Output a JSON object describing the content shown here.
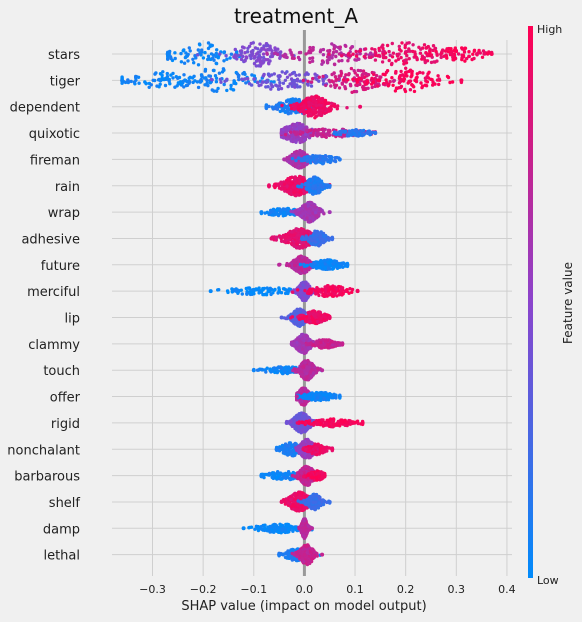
{
  "chart_data": {
    "type": "beeswarm",
    "title": "treatment_A",
    "xlabel": "SHAP value (impact on model output)",
    "xlim": [
      -0.38,
      0.41
    ],
    "x_ticks": [
      -0.3,
      -0.2,
      -0.1,
      0.0,
      0.1,
      0.2,
      0.3,
      0.4
    ],
    "x_tick_labels": [
      "−0.3",
      "−0.2",
      "−0.1",
      "0.0",
      "0.1",
      "0.2",
      "0.3",
      "0.4"
    ],
    "grid": true,
    "colorbar": {
      "label": "Feature value",
      "high_label": "High",
      "low_label": "Low",
      "low_color": "#008bfb",
      "mid_color": "#8b44cc",
      "high_color": "#ff0052"
    },
    "features": [
      {
        "name": "stars",
        "min": -0.27,
        "max": 0.37,
        "blobs": [
          {
            "x": -0.2,
            "s": 0.05,
            "w": 0.5,
            "h": 1.0,
            "c": 0.05
          },
          {
            "x": -0.09,
            "s": 0.03,
            "w": 0.7,
            "h": 1.0,
            "c": 0.45
          },
          {
            "x": 0.05,
            "s": 0.05,
            "w": 0.7,
            "h": 0.9,
            "c": 0.7
          },
          {
            "x": 0.2,
            "s": 0.06,
            "w": 0.9,
            "h": 1.0,
            "c": 0.9
          },
          {
            "x": 0.31,
            "s": 0.03,
            "w": 0.4,
            "h": 0.6,
            "c": 0.97
          }
        ]
      },
      {
        "name": "tiger",
        "min": -0.36,
        "max": 0.31,
        "blobs": [
          {
            "x": -0.28,
            "s": 0.05,
            "w": 0.4,
            "h": 0.7,
            "c": 0.05
          },
          {
            "x": -0.17,
            "s": 0.05,
            "w": 0.6,
            "h": 1.0,
            "c": 0.05
          },
          {
            "x": -0.04,
            "s": 0.06,
            "w": 0.7,
            "h": 0.8,
            "c": 0.4
          },
          {
            "x": 0.1,
            "s": 0.04,
            "w": 0.7,
            "h": 1.0,
            "c": 0.8
          },
          {
            "x": 0.2,
            "s": 0.05,
            "w": 0.8,
            "h": 1.0,
            "c": 0.97
          }
        ]
      },
      {
        "name": "dependent",
        "min": -0.075,
        "max": 0.11,
        "blobs": [
          {
            "x": -0.02,
            "s": 0.025,
            "w": 0.5,
            "h": 0.6,
            "c": 0.1
          },
          {
            "x": 0.02,
            "s": 0.02,
            "w": 0.8,
            "h": 0.9,
            "c": 0.92
          }
        ]
      },
      {
        "name": "quixotic",
        "min": -0.045,
        "max": 0.14,
        "blobs": [
          {
            "x": -0.015,
            "s": 0.02,
            "w": 0.9,
            "h": 0.8,
            "c": 0.55
          },
          {
            "x": 0.05,
            "s": 0.04,
            "w": 0.3,
            "h": 0.3,
            "c": 0.75
          },
          {
            "x": 0.1,
            "s": 0.02,
            "w": 0.2,
            "h": 0.2,
            "c": 0.15
          }
        ]
      },
      {
        "name": "fireman",
        "min": -0.04,
        "max": 0.07,
        "blobs": [
          {
            "x": -0.01,
            "s": 0.012,
            "w": 1.0,
            "h": 0.7,
            "c": 0.65
          },
          {
            "x": 0.03,
            "s": 0.02,
            "w": 0.3,
            "h": 0.3,
            "c": 0.12
          }
        ]
      },
      {
        "name": "rain",
        "min": -0.07,
        "max": 0.05,
        "blobs": [
          {
            "x": -0.015,
            "s": 0.02,
            "w": 0.8,
            "h": 0.8,
            "c": 0.92
          },
          {
            "x": 0.02,
            "s": 0.012,
            "w": 0.6,
            "h": 0.7,
            "c": 0.12
          }
        ]
      },
      {
        "name": "wrap",
        "min": -0.085,
        "max": 0.05,
        "blobs": [
          {
            "x": -0.04,
            "s": 0.025,
            "w": 0.25,
            "h": 0.25,
            "c": 0.05
          },
          {
            "x": 0.01,
            "s": 0.012,
            "w": 1.0,
            "h": 0.8,
            "c": 0.6
          }
        ]
      },
      {
        "name": "adhesive",
        "min": -0.065,
        "max": 0.055,
        "blobs": [
          {
            "x": -0.01,
            "s": 0.02,
            "w": 1.0,
            "h": 0.8,
            "c": 0.88
          },
          {
            "x": 0.025,
            "s": 0.012,
            "w": 0.5,
            "h": 0.6,
            "c": 0.2
          }
        ]
      },
      {
        "name": "future",
        "min": -0.05,
        "max": 0.085,
        "blobs": [
          {
            "x": -0.005,
            "s": 0.012,
            "w": 1.0,
            "h": 0.7,
            "c": 0.7
          },
          {
            "x": 0.045,
            "s": 0.02,
            "w": 0.5,
            "h": 0.35,
            "c": 0.05
          }
        ]
      },
      {
        "name": "merciful",
        "min": -0.185,
        "max": 0.105,
        "blobs": [
          {
            "x": -0.08,
            "s": 0.05,
            "w": 0.35,
            "h": 0.22,
            "c": 0.02
          },
          {
            "x": 0.0,
            "s": 0.008,
            "w": 1.0,
            "h": 0.8,
            "c": 0.45
          },
          {
            "x": 0.05,
            "s": 0.025,
            "w": 0.45,
            "h": 0.4,
            "c": 0.95
          }
        ]
      },
      {
        "name": "lip",
        "min": -0.045,
        "max": 0.05,
        "blobs": [
          {
            "x": -0.01,
            "s": 0.01,
            "w": 1.0,
            "h": 0.7,
            "c": 0.3
          },
          {
            "x": 0.02,
            "s": 0.015,
            "w": 0.6,
            "h": 0.5,
            "c": 0.92
          }
        ]
      },
      {
        "name": "clammy",
        "min": -0.025,
        "max": 0.075,
        "blobs": [
          {
            "x": -0.002,
            "s": 0.01,
            "w": 1.0,
            "h": 0.8,
            "c": 0.6
          },
          {
            "x": 0.04,
            "s": 0.015,
            "w": 0.35,
            "h": 0.3,
            "c": 0.75
          }
        ]
      },
      {
        "name": "touch",
        "min": -0.1,
        "max": 0.035,
        "blobs": [
          {
            "x": -0.04,
            "s": 0.025,
            "w": 0.3,
            "h": 0.22,
            "c": 0.05
          },
          {
            "x": 0.005,
            "s": 0.01,
            "w": 1.0,
            "h": 0.8,
            "c": 0.7
          }
        ]
      },
      {
        "name": "offer",
        "min": -0.015,
        "max": 0.07,
        "blobs": [
          {
            "x": -0.002,
            "s": 0.008,
            "w": 1.0,
            "h": 0.7,
            "c": 0.7
          },
          {
            "x": 0.03,
            "s": 0.02,
            "w": 0.45,
            "h": 0.3,
            "c": 0.05
          }
        ]
      },
      {
        "name": "rigid",
        "min": -0.035,
        "max": 0.115,
        "blobs": [
          {
            "x": -0.005,
            "s": 0.012,
            "w": 1.0,
            "h": 0.8,
            "c": 0.4
          },
          {
            "x": 0.055,
            "s": 0.03,
            "w": 0.4,
            "h": 0.25,
            "c": 0.97
          }
        ]
      },
      {
        "name": "nonchalant",
        "min": -0.055,
        "max": 0.055,
        "blobs": [
          {
            "x": -0.025,
            "s": 0.015,
            "w": 0.6,
            "h": 0.5,
            "c": 0.1
          },
          {
            "x": 0.005,
            "s": 0.01,
            "w": 1.0,
            "h": 0.8,
            "c": 0.55
          },
          {
            "x": 0.025,
            "s": 0.012,
            "w": 0.4,
            "h": 0.4,
            "c": 0.92
          }
        ]
      },
      {
        "name": "barbarous",
        "min": -0.085,
        "max": 0.04,
        "blobs": [
          {
            "x": -0.04,
            "s": 0.025,
            "w": 0.3,
            "h": 0.28,
            "c": 0.05
          },
          {
            "x": 0.005,
            "s": 0.01,
            "w": 1.0,
            "h": 0.8,
            "c": 0.75
          },
          {
            "x": 0.025,
            "s": 0.01,
            "w": 0.4,
            "h": 0.35,
            "c": 0.95
          }
        ]
      },
      {
        "name": "shelf",
        "min": -0.045,
        "max": 0.05,
        "blobs": [
          {
            "x": -0.01,
            "s": 0.015,
            "w": 1.0,
            "h": 0.8,
            "c": 0.9
          },
          {
            "x": 0.02,
            "s": 0.01,
            "w": 0.7,
            "h": 0.6,
            "c": 0.2
          }
        ]
      },
      {
        "name": "damp",
        "min": -0.12,
        "max": 0.015,
        "blobs": [
          {
            "x": -0.05,
            "s": 0.03,
            "w": 0.35,
            "h": 0.3,
            "c": 0.02
          },
          {
            "x": 0.0,
            "s": 0.004,
            "w": 1.0,
            "h": 0.8,
            "c": 0.7
          }
        ]
      },
      {
        "name": "lethal",
        "min": -0.05,
        "max": 0.035,
        "blobs": [
          {
            "x": -0.015,
            "s": 0.015,
            "w": 0.6,
            "h": 0.45,
            "c": 0.1
          },
          {
            "x": 0.005,
            "s": 0.01,
            "w": 1.0,
            "h": 0.8,
            "c": 0.75
          }
        ]
      }
    ]
  }
}
